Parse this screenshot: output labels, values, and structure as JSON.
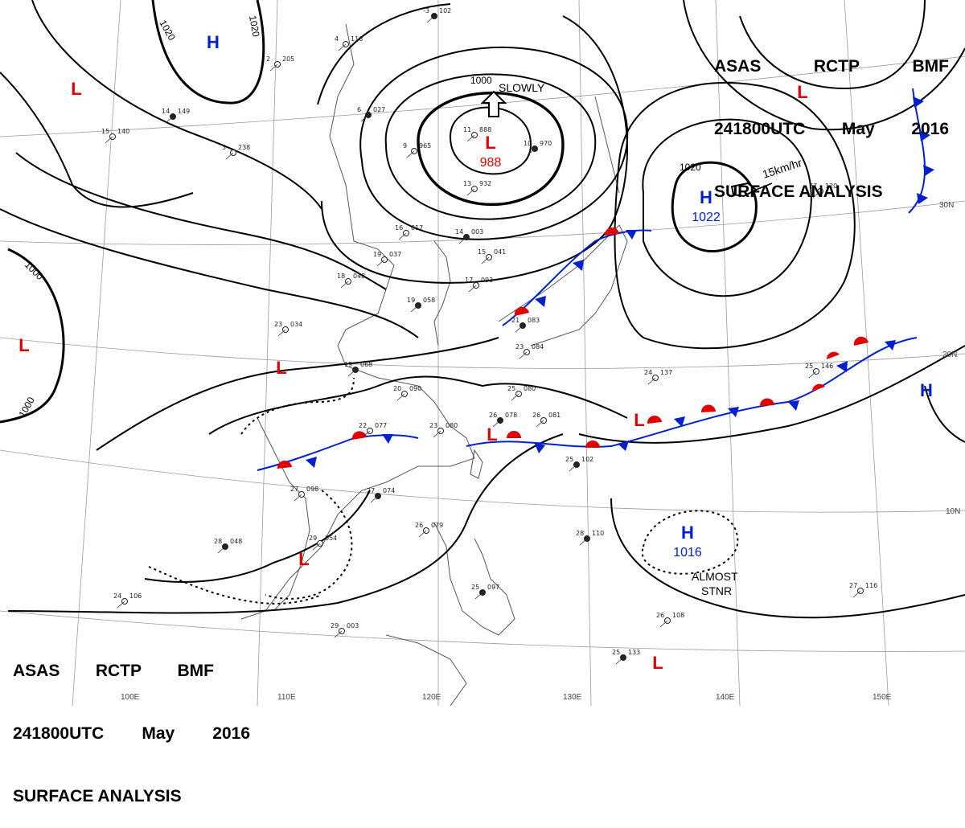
{
  "titles": {
    "top": {
      "line1": [
        "ASAS",
        "RCTP",
        "BMF"
      ],
      "line2": [
        "241800UTC",
        "May",
        "2016"
      ],
      "line3": "SURFACE ANALYSIS"
    },
    "bottom": {
      "line1": [
        "ASAS",
        "RCTP",
        "BMF"
      ],
      "line2": [
        "241800UTC",
        "May",
        "2016"
      ],
      "line3": "SURFACE ANALYSIS"
    }
  },
  "colors": {
    "low": "#e00000",
    "high": "#0020d0",
    "warm_front": "#e00000",
    "cold_front": "#0020d0",
    "isobar": "#000000",
    "grid": "#888888",
    "coast": "#555555"
  },
  "pressure_systems": [
    {
      "type": "H",
      "center": null
    },
    {
      "type": "L",
      "center": null
    },
    {
      "type": "L",
      "center": "988"
    },
    {
      "type": "L",
      "center": null
    },
    {
      "type": "H",
      "center": "1022"
    },
    {
      "type": "L",
      "center": null
    },
    {
      "type": "L",
      "center": null
    },
    {
      "type": "L",
      "center": null
    },
    {
      "type": "L",
      "center": null
    },
    {
      "type": "H",
      "center": null
    },
    {
      "type": "H",
      "center": "1016"
    },
    {
      "type": "L",
      "center": null
    },
    {
      "type": "L",
      "center": null
    }
  ],
  "isobar_labels": [
    "1020",
    "1020",
    "1000",
    "1020",
    "1000",
    "1000"
  ],
  "annotations": {
    "slowly": "SLOWLY",
    "speed": "15km/hr",
    "almost": "ALMOST",
    "stnr": "STNR"
  },
  "latitude_labels": [
    "30N",
    "20N",
    "10N"
  ],
  "longitude_labels": [
    "100E",
    "110E",
    "120E",
    "130E",
    "140E",
    "150E"
  ],
  "station_plots": [
    {
      "t": "-3",
      "p": "102"
    },
    {
      "t": "4",
      "p": "116"
    },
    {
      "t": "2",
      "p": "205"
    },
    {
      "t": "14",
      "p": "149"
    },
    {
      "t": "3",
      "p": "238"
    },
    {
      "t": "15",
      "p": "140"
    },
    {
      "t": "6",
      "p": "027"
    },
    {
      "t": "11",
      "p": "888"
    },
    {
      "t": "9",
      "p": "965"
    },
    {
      "t": "10",
      "p": "970"
    },
    {
      "t": "13",
      "p": "932"
    },
    {
      "t": "16",
      "p": "017"
    },
    {
      "t": "14",
      "p": "003"
    },
    {
      "t": "19",
      "p": "037"
    },
    {
      "t": "18",
      "p": "048"
    },
    {
      "t": "19",
      "p": "058"
    },
    {
      "t": "15",
      "p": "041"
    },
    {
      "t": "17",
      "p": "093"
    },
    {
      "t": "21",
      "p": "083"
    },
    {
      "t": "23",
      "p": "084"
    },
    {
      "t": "23",
      "p": "034"
    },
    {
      "t": "19",
      "p": "068"
    },
    {
      "t": "20",
      "p": "090"
    },
    {
      "t": "25",
      "p": "080"
    },
    {
      "t": "26",
      "p": "078"
    },
    {
      "t": "26",
      "p": "081"
    },
    {
      "t": "23",
      "p": "080"
    },
    {
      "t": "27",
      "p": "074"
    },
    {
      "t": "22",
      "p": "077"
    },
    {
      "t": "29",
      "p": "054"
    },
    {
      "t": "28",
      "p": "048"
    },
    {
      "t": "24",
      "p": "106"
    },
    {
      "t": "26",
      "p": "079"
    },
    {
      "t": "25",
      "p": "097"
    },
    {
      "t": "29",
      "p": "003"
    },
    {
      "t": "26",
      "p": "108"
    },
    {
      "t": "25",
      "p": "133"
    },
    {
      "t": "24",
      "p": "137"
    },
    {
      "t": "25",
      "p": "146"
    },
    {
      "t": "28",
      "p": "110"
    },
    {
      "t": "27",
      "p": "116"
    },
    {
      "t": "27",
      "p": "120"
    },
    {
      "t": "25",
      "p": "102"
    },
    {
      "t": "27",
      "p": "098"
    }
  ]
}
